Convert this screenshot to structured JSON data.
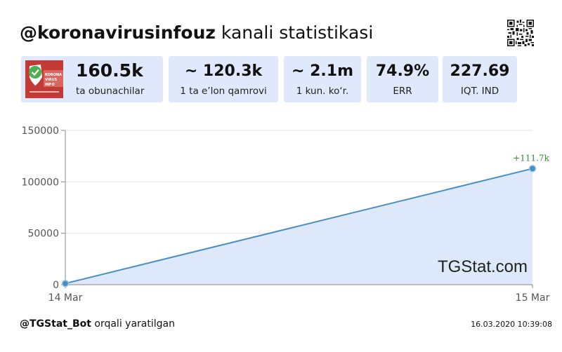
{
  "header": {
    "handle": "@koronavirusinfouz",
    "title_rest": "kanali statistikasi"
  },
  "stats": [
    {
      "value": "160.5k",
      "label": "ta obunachilar"
    },
    {
      "value": "~ 120.3k",
      "label": "1 ta e’lon qamrovi"
    },
    {
      "value": "~ 2.1m",
      "label": "1 kun. ko‘r."
    },
    {
      "value": "74.9%",
      "label": "ERR"
    },
    {
      "value": "227.69",
      "label": "IQT. IND"
    }
  ],
  "avatar": {
    "line1": "KORONA",
    "line2": "VIRUS",
    "line3": "INFO"
  },
  "chart_data": {
    "type": "area",
    "x": [
      "14 Mar",
      "15 Mar"
    ],
    "values": [
      1200,
      112900
    ],
    "yticks": [
      0,
      50000,
      100000,
      150000
    ],
    "ytick_labels": [
      "0",
      "50000",
      "100000",
      "150000"
    ],
    "ylim": [
      0,
      150000
    ],
    "annotation": "+111.7k",
    "watermark": "TGStat.com",
    "grid": true,
    "colors": {
      "line": "#4a8fc0",
      "fill": "#dde9fb",
      "annotation": "#3a8a3a"
    }
  },
  "footer": {
    "bot": "@TGStat_Bot",
    "rest": "orqali yaratilgan",
    "timestamp": "16.03.2020 10:39:08"
  }
}
